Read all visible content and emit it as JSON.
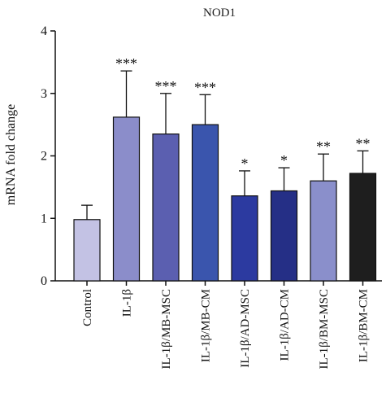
{
  "chart_data": {
    "type": "bar",
    "title": "NOD1",
    "ylabel": "mRNA fold change",
    "xlabel": "",
    "ylim": [
      0,
      4
    ],
    "yticks": [
      0,
      1,
      2,
      3,
      4
    ],
    "grid": false,
    "categories": [
      "Control",
      "IL-1β",
      "IL-1β/MB-MSC",
      "IL-1β/MB-CM",
      "IL-1β/AD-MSC",
      "IL-1β/AD-CM",
      "IL-1β/BM-MSC",
      "IL-1β/BM-CM"
    ],
    "values": [
      0.98,
      2.62,
      2.35,
      2.5,
      1.36,
      1.44,
      1.6,
      1.72
    ],
    "errors": [
      0.23,
      0.74,
      0.65,
      0.48,
      0.4,
      0.37,
      0.43,
      0.36
    ],
    "significance": [
      "",
      "***",
      "***",
      "***",
      "*",
      "*",
      "**",
      "**"
    ],
    "colors": [
      "#c3c2e4",
      "#8b8dca",
      "#5b5fb0",
      "#3a55ad",
      "#2c3aa0",
      "#252f86",
      "#8a8fcb",
      "#1e1e1e"
    ]
  }
}
